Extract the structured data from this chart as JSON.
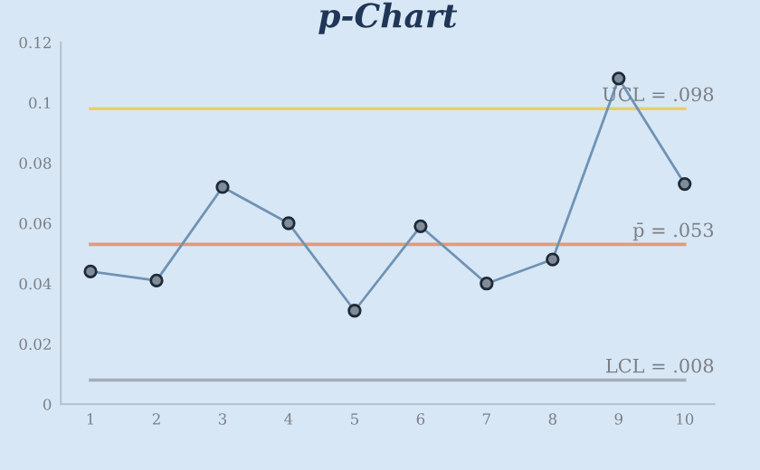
{
  "chart_data": {
    "type": "line",
    "title": "p-Chart",
    "categories": [
      "1",
      "2",
      "3",
      "4",
      "5",
      "6",
      "7",
      "8",
      "9",
      "10"
    ],
    "series": [
      {
        "color": "#6f93b5",
        "values": [
          0.044,
          0.041,
          0.072,
          0.06,
          0.031,
          0.059,
          0.04,
          0.048,
          0.108,
          0.073
        ]
      }
    ],
    "ylim": [
      0,
      0.12
    ],
    "yticks": [
      0,
      0.02,
      0.04,
      0.06,
      0.08,
      0.1,
      0.12
    ],
    "marker": "circle",
    "line_style": "solid",
    "grid": false,
    "ref_lines": [
      {
        "axis": "y",
        "value": 0.098,
        "label": "UCL = .098",
        "color": "#e8cf6a"
      },
      {
        "axis": "y",
        "value": 0.053,
        "label": "p̄ = .053",
        "color": "#e39a78"
      },
      {
        "axis": "y",
        "value": 0.008,
        "label": "LCL = .008",
        "color": "#a3adb8"
      }
    ]
  }
}
